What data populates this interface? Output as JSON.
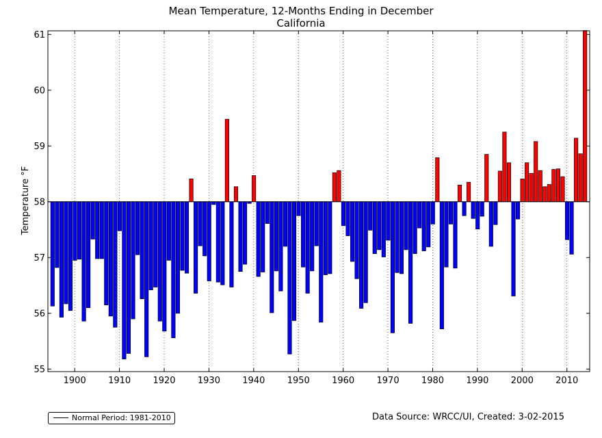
{
  "chart_data": {
    "type": "bar",
    "title": "Mean Temperature, 12-Months Ending in December",
    "subtitle": "California",
    "ylabel": "Temperature °F",
    "xlabel": "",
    "baseline": 58.0,
    "xlim": [
      1895,
      2015
    ],
    "ylim": [
      54.95,
      61.07
    ],
    "x_ticks": [
      1900,
      1910,
      1920,
      1930,
      1940,
      1950,
      1960,
      1970,
      1980,
      1990,
      2000,
      2010
    ],
    "y_ticks": [
      55,
      56,
      57,
      58,
      59,
      60,
      61
    ],
    "grid": "vertical dotted",
    "colors": {
      "above": "#ff0000",
      "below": "#0000ff",
      "edge": "#000000"
    },
    "years": [
      1895,
      1896,
      1897,
      1898,
      1899,
      1900,
      1901,
      1902,
      1903,
      1904,
      1905,
      1906,
      1907,
      1908,
      1909,
      1910,
      1911,
      1912,
      1913,
      1914,
      1915,
      1916,
      1917,
      1918,
      1919,
      1920,
      1921,
      1922,
      1923,
      1924,
      1925,
      1926,
      1927,
      1928,
      1929,
      1930,
      1931,
      1932,
      1933,
      1934,
      1935,
      1936,
      1937,
      1938,
      1939,
      1940,
      1941,
      1942,
      1943,
      1944,
      1945,
      1946,
      1947,
      1948,
      1949,
      1950,
      1951,
      1952,
      1953,
      1954,
      1955,
      1956,
      1957,
      1958,
      1959,
      1960,
      1961,
      1962,
      1963,
      1964,
      1965,
      1966,
      1967,
      1968,
      1969,
      1970,
      1971,
      1972,
      1973,
      1974,
      1975,
      1976,
      1977,
      1978,
      1979,
      1980,
      1981,
      1982,
      1983,
      1984,
      1985,
      1986,
      1987,
      1988,
      1989,
      1990,
      1991,
      1992,
      1993,
      1994,
      1995,
      1996,
      1997,
      1998,
      1999,
      2000,
      2001,
      2002,
      2003,
      2004,
      2005,
      2006,
      2007,
      2008,
      2009,
      2010,
      2011,
      2012,
      2013,
      2014
    ],
    "values": [
      56.13,
      56.82,
      55.93,
      56.17,
      56.05,
      56.95,
      56.97,
      55.86,
      56.1,
      57.33,
      56.98,
      56.98,
      56.15,
      55.95,
      55.75,
      57.48,
      55.18,
      55.28,
      55.9,
      57.05,
      56.26,
      55.22,
      56.42,
      56.47,
      55.86,
      55.68,
      56.95,
      55.56,
      56.0,
      56.77,
      56.72,
      58.41,
      56.36,
      57.21,
      57.03,
      56.58,
      57.95,
      56.56,
      56.51,
      59.48,
      56.47,
      58.27,
      56.75,
      56.88,
      57.97,
      58.47,
      56.66,
      56.74,
      57.61,
      56.01,
      56.76,
      56.4,
      57.2,
      55.27,
      55.87,
      57.75,
      56.83,
      56.36,
      56.76,
      57.21,
      55.84,
      56.69,
      56.71,
      58.52,
      58.56,
      57.57,
      57.39,
      56.93,
      56.62,
      56.09,
      56.19,
      57.49,
      57.07,
      57.14,
      57.01,
      57.31,
      55.65,
      56.73,
      56.71,
      57.14,
      55.82,
      57.07,
      57.53,
      57.12,
      57.19,
      57.6,
      58.79,
      55.72,
      56.83,
      57.6,
      56.81,
      58.3,
      57.75,
      58.35,
      57.7,
      57.51,
      57.74,
      58.85,
      57.2,
      57.59,
      58.55,
      59.25,
      58.7,
      56.31,
      57.69,
      58.41,
      58.7,
      58.51,
      59.08,
      58.56,
      58.27,
      58.31,
      58.58,
      58.59,
      58.45,
      57.32,
      57.06,
      59.14,
      58.86,
      61.07
    ]
  },
  "legend": {
    "label": "Normal Period: 1981-2010"
  },
  "source_note": "Data Source: WRCC/UI, Created: 3-02-2015"
}
